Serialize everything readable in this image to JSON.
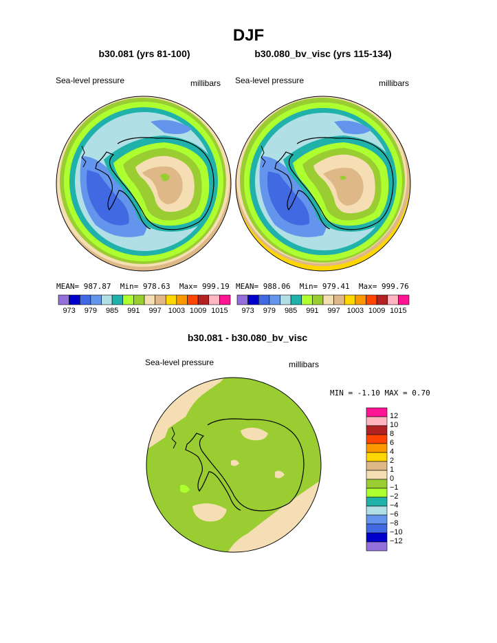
{
  "title": "DJF",
  "panels": [
    {
      "title": "b30.081 (yrs 81-100)",
      "field_label": "Sea-level pressure",
      "units": "millibars",
      "stats": {
        "mean_label": "MEAN=",
        "mean": "987.87",
        "min_label": "Min=",
        "min": "978.63",
        "max_label": "Max=",
        "max": "999.19"
      }
    },
    {
      "title": "b30.080_bv_visc (yrs 115-134)",
      "field_label": "Sea-level pressure",
      "units": "millibars",
      "stats": {
        "mean_label": "MEAN=",
        "mean": "988.06",
        "min_label": "Min=",
        "min": "979.41",
        "max_label": "Max=",
        "max": "999.76"
      }
    }
  ],
  "colorbar_ticks": [
    "973",
    "979",
    "985",
    "991",
    "997",
    "1003",
    "1009",
    "1015"
  ],
  "colorbar_colors": [
    "#9370db",
    "#0000cd",
    "#4169e1",
    "#6495ed",
    "#b0e0e6",
    "#20b2aa",
    "#adff2f",
    "#9acd32",
    "#f5deb3",
    "#deb887",
    "#ffd700",
    "#ff9900",
    "#ff4500",
    "#b22222",
    "#ffb6c1",
    "#ff1493"
  ],
  "diff_panel": {
    "title": "b30.081 - b30.080_bv_visc",
    "field_label": "Sea-level pressure",
    "units": "millibars",
    "min_label": "MIN =",
    "min": "-1.10",
    "max_label": "MAX =",
    "max": "0.70",
    "colorbar_ticks": [
      "12",
      "10",
      "8",
      "6",
      "4",
      "2",
      "1",
      "0",
      "−1",
      "−2",
      "−4",
      "−6",
      "−8",
      "−10",
      "−12"
    ],
    "colorbar_colors": [
      "#ff1493",
      "#ffb6c1",
      "#b22222",
      "#ff4500",
      "#ff9900",
      "#ffd700",
      "#deb887",
      "#f5deb3",
      "#9acd32",
      "#adff2f",
      "#20b2aa",
      "#b0e0e6",
      "#6495ed",
      "#4169e1",
      "#0000cd",
      "#9370db"
    ]
  }
}
